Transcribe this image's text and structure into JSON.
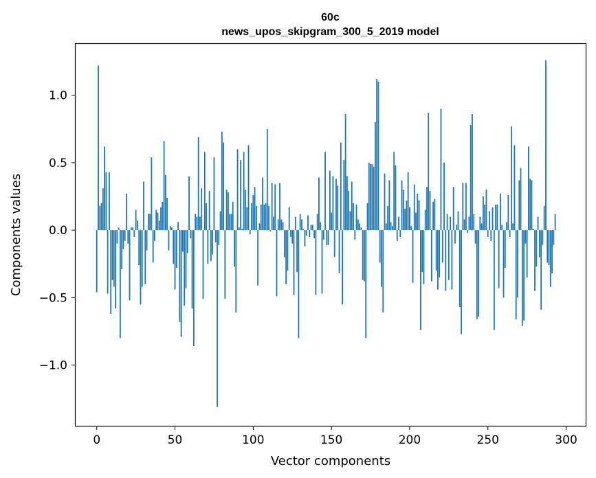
{
  "chart_data": {
    "type": "bar",
    "title": "60c",
    "subtitle": "news_upos_skipgram_300_5_2019 model",
    "xlabel": "Vector components",
    "ylabel": "Components values",
    "xlim": [
      -13.5,
      312.5
    ],
    "ylim": [
      -1.45,
      1.38
    ],
    "xticks": [
      0,
      50,
      100,
      150,
      200,
      250,
      300
    ],
    "xtick_labels": [
      "0",
      "50",
      "100",
      "150",
      "200",
      "250",
      "300"
    ],
    "yticks": [
      -1.0,
      -0.5,
      0.0,
      0.5,
      1.0
    ],
    "ytick_labels": [
      "−1.0",
      "−0.5",
      "0.0",
      "0.5",
      "1.0"
    ],
    "bar_color": "#1f77b4",
    "values": [
      -0.46,
      1.22,
      0.18,
      0.2,
      0.31,
      0.62,
      0.43,
      -0.47,
      0.43,
      -0.62,
      -0.37,
      -0.42,
      -0.58,
      -0.1,
      0.02,
      -0.8,
      -0.29,
      -0.14,
      -0.08,
      0.27,
      -0.1,
      -0.52,
      0.02,
      0.02,
      -0.05,
      0.15,
      0.07,
      -0.26,
      -0.55,
      -0.42,
      0.36,
      -0.4,
      -0.15,
      0.12,
      0.12,
      0.54,
      -0.24,
      -0.08,
      0.15,
      0.13,
      0.07,
      0.17,
      0.21,
      0.66,
      0.41,
      0.24,
      -0.15,
      0.03,
      0.02,
      -0.25,
      -0.44,
      -0.28,
      0.06,
      -0.68,
      -0.79,
      -0.16,
      -0.56,
      -0.43,
      -0.17,
      0.4,
      -0.06,
      -0.58,
      -0.86,
      0.12,
      0.1,
      0.69,
      0.1,
      0.31,
      -0.51,
      0.58,
      0.2,
      -0.25,
      0.29,
      -0.23,
      -0.18,
      0.54,
      -0.09,
      -1.31,
      -0.11,
      0.14,
      0.73,
      0.65,
      -0.51,
      0.3,
      0.28,
      0.12,
      0.12,
      0.21,
      -0.27,
      -0.61,
      0.6,
      0.02,
      0.52,
      0.01,
      0.58,
      0.3,
      0.17,
      0.63,
      -0.03,
      0.2,
      0.26,
      0.32,
      0.18,
      -0.41,
      0.05,
      0.19,
      0.39,
      0.19,
      0.2,
      0.75,
      0.18,
      -0.01,
      0.35,
      0.1,
      0.34,
      -0.49,
      0.08,
      0.35,
      0.08,
      0.06,
      -0.2,
      -0.4,
      -0.3,
      0.17,
      -0.05,
      -0.1,
      -0.48,
      0.1,
      -0.31,
      -0.8,
      0.12,
      0.08,
      0.01,
      -0.12,
      -0.04,
      0.11,
      -0.05,
      0.04,
      0.04,
      -0.06,
      -0.48,
      0.12,
      0.39,
      0.06,
      -0.47,
      -0.07,
      0.58,
      -0.11,
      -0.11,
      0.44,
      0.13,
      0.4,
      -0.2,
      0.38,
      0.33,
      -0.32,
      0.65,
      -0.55,
      0.52,
      0.86,
      0.4,
      0.29,
      0.14,
      0.36,
      0.2,
      -0.07,
      0.19,
      0.08,
      0.05,
      0.02,
      -0.37,
      -0.38,
      -0.8,
      0.2,
      0.5,
      0.49,
      0.49,
      0.47,
      0.8,
      1.12,
      1.1,
      -0.24,
      -0.42,
      -0.61,
      0.42,
      0.05,
      0.18,
      0.37,
      0.06,
      0.03,
      0.58,
      0.48,
      -0.08,
      0.1,
      -0.05,
      0.37,
      0.3,
      0.16,
      0.22,
      0.43,
      0.17,
      0.03,
      -0.39,
      0.34,
      0.13,
      0.27,
      0.22,
      -0.74,
      -0.31,
      -0.4,
      0.15,
      0.32,
      0.87,
      0.29,
      -0.38,
      0.21,
      0.23,
      -0.3,
      -0.44,
      -0.35,
      0.9,
      -0.24,
      0.5,
      -0.45,
      0.12,
      -0.37,
      0.1,
      -0.44,
      0.32,
      -0.1,
      0.04,
      0.14,
      -0.57,
      -0.77,
      0.35,
      0.08,
      0.35,
      -0.02,
      0.1,
      0.78,
      0.86,
      0.12,
      -0.1,
      -0.66,
      -0.64,
      0.1,
      0.05,
      0.25,
      0.19,
      0.3,
      -0.05,
      0.14,
      -0.08,
      0.17,
      -0.74,
      0.19,
      0.19,
      -0.43,
      0.27,
      0.04,
      -0.5,
      -0.28,
      0.06,
      0.26,
      -0.05,
      0.77,
      0.05,
      0.63,
      -0.66,
      -0.5,
      0.37,
      0.46,
      -0.71,
      -0.67,
      -0.1,
      -0.35,
      0.62,
      0.38,
      0.37,
      0.01,
      -0.45,
      -0.27,
      0.1,
      -0.2,
      -0.59,
      -0.11,
      0.18,
      1.26,
      -0.24,
      -0.26,
      -0.42,
      -0.32,
      -0.11,
      0.12
    ]
  }
}
